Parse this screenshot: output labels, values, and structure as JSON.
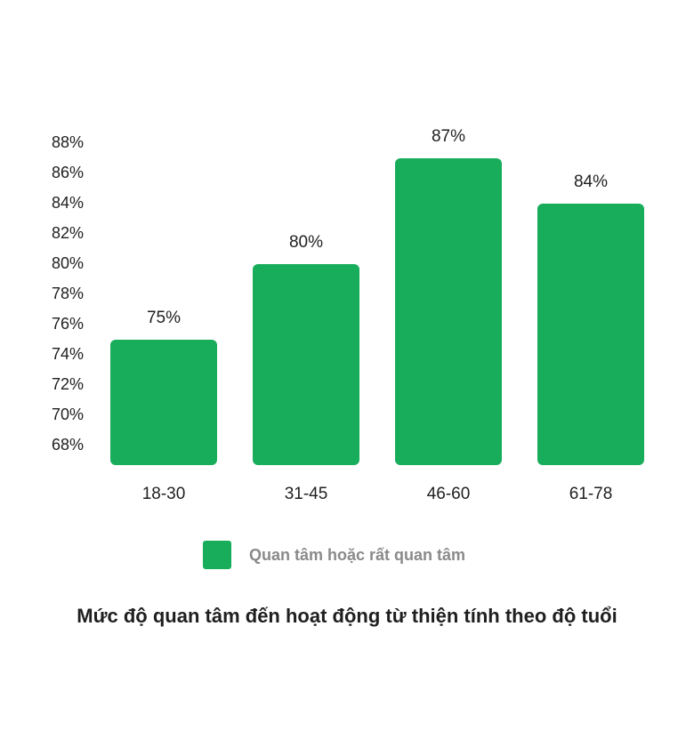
{
  "chart_data": {
    "type": "bar",
    "title": "Mức độ quan tâm đến hoạt động từ thiện tính theo độ tuổi",
    "xlabel": "",
    "ylabel": "",
    "categories": [
      "18-30",
      "31-45",
      "46-60",
      "61-78"
    ],
    "series": [
      {
        "name": "Quan tâm hoặc rất quan tâm",
        "values": [
          75,
          80,
          87,
          84
        ],
        "labels": [
          "75%",
          "80%",
          "87%",
          "84%"
        ],
        "color": "#18ad5b"
      }
    ],
    "ylim": [
      68,
      88
    ],
    "yticks": [
      88,
      86,
      84,
      82,
      80,
      78,
      76,
      74,
      72,
      70,
      68
    ],
    "ytick_labels": [
      "88%",
      "86%",
      "84%",
      "82%",
      "80%",
      "78%",
      "76%",
      "74%",
      "72%",
      "70%",
      "68%"
    ],
    "grid": false,
    "legend_position": "bottom"
  },
  "legend": {
    "label": "Quan tâm hoặc rất quan tâm",
    "color": "#18ad5b"
  },
  "title": "Mức độ quan tâm đến hoạt động từ thiện tính theo độ tuổi"
}
